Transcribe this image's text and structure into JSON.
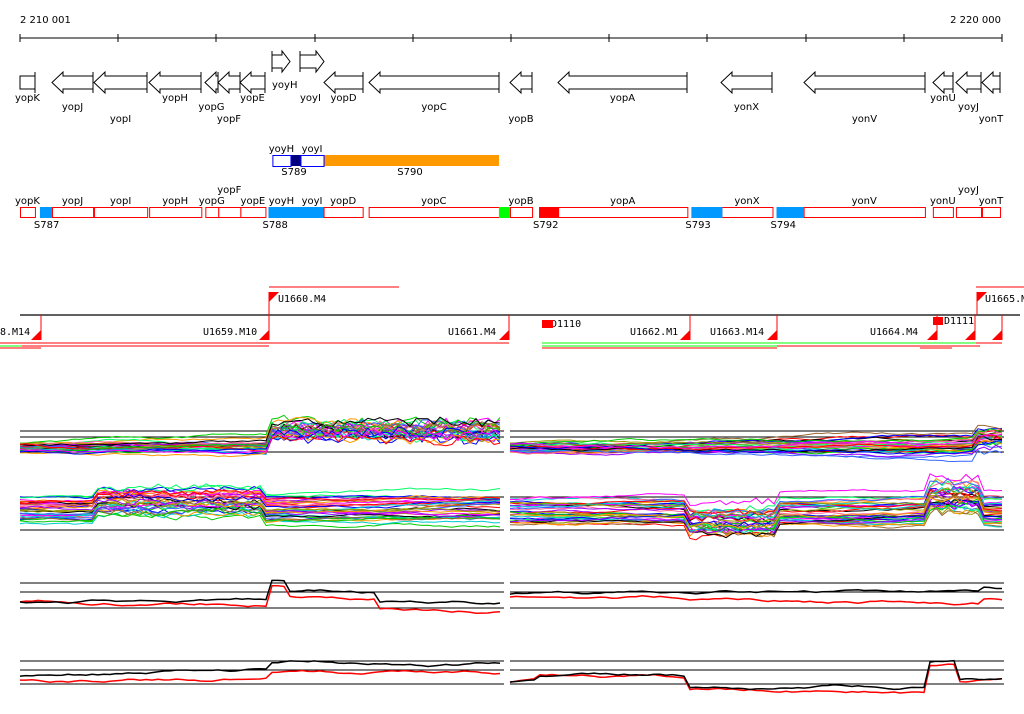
{
  "axis": {
    "start_label": "2 210 001",
    "end_label": "2 220 000",
    "start_bp": 2210001,
    "end_bp": 2220000,
    "tick_bp": 1000
  },
  "genes": [
    {
      "name": "yopK",
      "s": 2210001,
      "e": 2210153,
      "strand": "box",
      "lvl": 0
    },
    {
      "name": "yopJ",
      "s": 2210327,
      "e": 2210745,
      "strand": "-",
      "lvl": 1
    },
    {
      "name": "yopI",
      "s": 2210755,
      "e": 2211296,
      "strand": "-",
      "lvl": 2
    },
    {
      "name": "yopH",
      "s": 2211316,
      "e": 2211847,
      "strand": "-",
      "lvl": 0
    },
    {
      "name": "yopG",
      "s": 2211888,
      "e": 2212020,
      "strand": "-",
      "lvl": 1
    },
    {
      "name": "yopF",
      "s": 2212020,
      "e": 2212245,
      "strand": "-",
      "lvl": 2
    },
    {
      "name": "yopE",
      "s": 2212245,
      "e": 2212500,
      "strand": "-",
      "lvl": 0
    },
    {
      "name": "yoyH",
      "s": 2212571,
      "e": 2212755,
      "strand": "+",
      "lvl": -1
    },
    {
      "name": "yoyI",
      "s": 2212857,
      "e": 2213092,
      "strand": "+",
      "lvl": 0
    },
    {
      "name": "yopD",
      "s": 2213092,
      "e": 2213490,
      "strand": "-",
      "lvl": 0
    },
    {
      "name": "yopC",
      "s": 2213551,
      "e": 2214878,
      "strand": "-",
      "lvl": 1
    },
    {
      "name": "yopB",
      "s": 2214990,
      "e": 2215215,
      "strand": "-",
      "lvl": 2
    },
    {
      "name": "yopA",
      "s": 2215480,
      "e": 2216796,
      "strand": "-",
      "lvl": 0
    },
    {
      "name": "yonX",
      "s": 2217143,
      "e": 2217663,
      "strand": "-",
      "lvl": 1
    },
    {
      "name": "yonV",
      "s": 2217980,
      "e": 2219215,
      "strand": "-",
      "lvl": 2
    },
    {
      "name": "yonU",
      "s": 2219296,
      "e": 2219500,
      "strand": "-",
      "lvl": 0
    },
    {
      "name": "yoyJ",
      "s": 2219531,
      "e": 2219786,
      "strand": "-",
      "lvl": 1
    },
    {
      "name": "yonT",
      "s": 2219796,
      "e": 2219980,
      "strand": "-",
      "lvl": 2
    }
  ],
  "features_row": {
    "boxes": [
      {
        "name": "yoyH",
        "s": 2212571,
        "e": 2212755
      },
      {
        "name": "yoyI",
        "s": 2212857,
        "e": 2213092
      }
    ],
    "blocks": [
      {
        "s": 2212755,
        "e": 2212857,
        "color": "#000080"
      },
      {
        "s": 2213092,
        "e": 2214878,
        "color": "#ff9900"
      }
    ],
    "labels": [
      {
        "text": "S789",
        "at": 2212776
      },
      {
        "text": "S790",
        "at": 2213960
      }
    ]
  },
  "segments_row": {
    "blocks": [
      {
        "s": 2210204,
        "e": 2210327,
        "color": "#0099ff",
        "label": "S787"
      },
      {
        "s": 2212531,
        "e": 2213092,
        "color": "#0099ff",
        "label": "S788"
      },
      {
        "s": 2214878,
        "e": 2214990,
        "color": "#00ff00",
        "label": ""
      },
      {
        "s": 2215286,
        "e": 2215490,
        "color": "#ff0000",
        "label": "S792"
      },
      {
        "s": 2216837,
        "e": 2217153,
        "color": "#0099ff",
        "label": "S793"
      },
      {
        "s": 2217704,
        "e": 2217980,
        "color": "#0099ff",
        "label": "S794"
      }
    ]
  },
  "transcription_units": {
    "labels": [
      {
        "text": "8.M14",
        "x": "left"
      },
      {
        "text": "U1659.M10"
      },
      {
        "text": "U1660.M4"
      },
      {
        "text": "U1661.M4"
      },
      {
        "text": "D1110"
      },
      {
        "text": "U1662.M1"
      },
      {
        "text": "U1663.M14"
      },
      {
        "text": "U1664.M4"
      },
      {
        "text": "D1111"
      },
      {
        "text": "U1665.M"
      }
    ]
  },
  "trace_colors": [
    "#ff0000",
    "#00cc00",
    "#0000ff",
    "#ff00ff",
    "#00cccc",
    "#ff9900",
    "#9900ff",
    "#999900",
    "#00ff66",
    "#ff6699",
    "#3366ff",
    "#996633",
    "#000000"
  ]
}
